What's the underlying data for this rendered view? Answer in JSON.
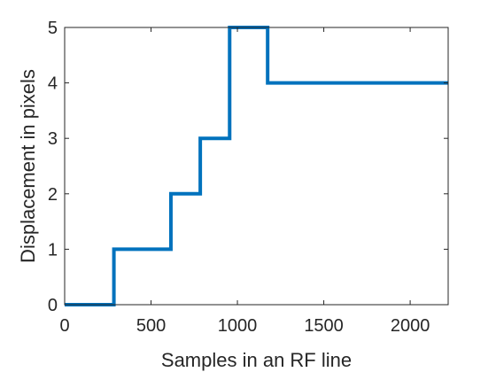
{
  "chart_data": {
    "type": "line",
    "title": "",
    "xlabel": "Samples in an RF line",
    "ylabel": "Displacement in pixels",
    "xlim": [
      0,
      2220
    ],
    "ylim": [
      0,
      5
    ],
    "xticks": [
      0,
      500,
      1000,
      1500,
      2000
    ],
    "yticks": [
      0,
      1,
      2,
      3,
      4,
      5
    ],
    "x_tick_labels": [
      "0",
      "500",
      "1000",
      "1500",
      "2000"
    ],
    "y_tick_labels": [
      "0",
      "1",
      "2",
      "3",
      "4",
      "5"
    ],
    "grid": false,
    "series": [
      {
        "color": "#0072BD",
        "x": [
          0,
          285,
          285,
          615,
          615,
          785,
          785,
          955,
          955,
          1175,
          1175,
          2220
        ],
        "y": [
          0,
          0,
          1,
          1,
          2,
          2,
          3,
          3,
          5,
          5,
          4,
          4
        ]
      }
    ]
  }
}
